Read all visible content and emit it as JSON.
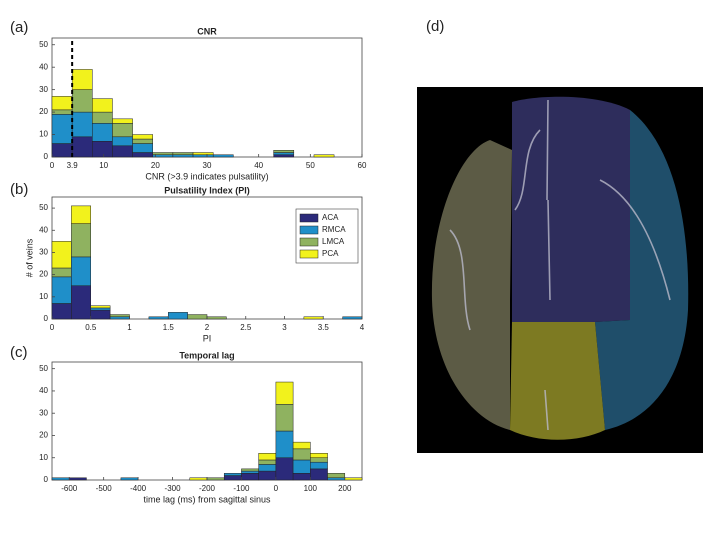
{
  "chart_data": [
    {
      "type": "histogram",
      "panel": "(a)",
      "title": "CNR",
      "xlabel": "CNR (>3.9 indicates pulsatility)",
      "bins": [
        0,
        3.9,
        7.8,
        11.7,
        15.6,
        19.5,
        23.4,
        27.3,
        31.2,
        35.1,
        39,
        42.9,
        46.8,
        50.7,
        54.6,
        58.5
      ],
      "series": [
        {
          "name": "ACA",
          "color": "#2b2a7a",
          "values": [
            6,
            9,
            7,
            5,
            2,
            0,
            0,
            0,
            0,
            0,
            0,
            1,
            0,
            0,
            0
          ]
        },
        {
          "name": "RMCA",
          "color": "#1f8fc9",
          "values": [
            13,
            11,
            8,
            4,
            4,
            1,
            1,
            1,
            1,
            0,
            0,
            1,
            0,
            0,
            0
          ]
        },
        {
          "name": "LMCA",
          "color": "#8fb260",
          "values": [
            2,
            10,
            5,
            6,
            2,
            1,
            1,
            0,
            0,
            0,
            0,
            1,
            0,
            0,
            0
          ]
        },
        {
          "name": "PCA",
          "color": "#f2f21c",
          "values": [
            6,
            9,
            6,
            2,
            2,
            0,
            0,
            1,
            0,
            0,
            0,
            0,
            0,
            1,
            0
          ]
        }
      ],
      "threshold": 3.9,
      "xlim": [
        0,
        60
      ],
      "xticks": [
        0,
        3.9,
        10,
        20,
        30,
        40,
        50,
        60
      ],
      "ylim": [
        0,
        53
      ],
      "yticks": [
        0,
        10,
        20,
        30,
        40,
        50
      ]
    },
    {
      "type": "histogram",
      "panel": "(b)",
      "title": "Pulsatility Index (PI)",
      "xlabel": "PI",
      "ylabel": "# of veins",
      "bins": [
        0,
        0.25,
        0.5,
        0.75,
        1,
        1.25,
        1.5,
        1.75,
        2,
        2.25,
        2.5,
        2.75,
        3,
        3.25,
        3.5,
        3.75,
        4
      ],
      "series": [
        {
          "name": "ACA",
          "color": "#2b2a7a",
          "values": [
            7,
            15,
            4,
            0,
            0,
            0,
            0,
            0,
            0,
            0,
            0,
            0,
            0,
            0,
            0,
            0
          ]
        },
        {
          "name": "RMCA",
          "color": "#1f8fc9",
          "values": [
            12,
            13,
            1,
            1,
            0,
            1,
            3,
            0,
            0,
            0,
            0,
            0,
            0,
            0,
            0,
            1
          ]
        },
        {
          "name": "LMCA",
          "color": "#8fb260",
          "values": [
            4,
            15,
            0,
            1,
            0,
            0,
            0,
            2,
            1,
            0,
            0,
            0,
            0,
            0,
            0,
            0
          ]
        },
        {
          "name": "PCA",
          "color": "#f2f21c",
          "values": [
            12,
            8,
            1,
            0,
            0,
            0,
            0,
            0,
            0,
            0,
            0,
            0,
            0,
            1,
            0,
            0
          ]
        }
      ],
      "legend": "upper right",
      "xlim": [
        0,
        4
      ],
      "xticks": [
        0,
        0.5,
        1,
        1.5,
        2,
        2.5,
        3,
        3.5,
        4
      ],
      "ylim": [
        0,
        55
      ],
      "yticks": [
        0,
        10,
        20,
        30,
        40,
        50
      ]
    },
    {
      "type": "histogram",
      "panel": "(c)",
      "title": "Temporal lag",
      "xlabel": "time lag (ms) from sagittal sinus",
      "bins": [
        -650,
        -600,
        -550,
        -500,
        -450,
        -400,
        -350,
        -300,
        -250,
        -200,
        -150,
        -100,
        -50,
        0,
        50,
        100,
        150,
        200,
        250
      ],
      "series": [
        {
          "name": "ACA",
          "color": "#2b2a7a",
          "values": [
            0,
            1,
            0,
            0,
            0,
            0,
            0,
            0,
            0,
            0,
            2,
            3,
            4,
            10,
            3,
            5,
            0,
            0
          ]
        },
        {
          "name": "RMCA",
          "color": "#1f8fc9",
          "values": [
            1,
            0,
            0,
            0,
            1,
            0,
            0,
            0,
            0,
            0,
            1,
            1,
            3,
            12,
            6,
            3,
            1,
            0
          ]
        },
        {
          "name": "LMCA",
          "color": "#8fb260",
          "values": [
            0,
            0,
            0,
            0,
            0,
            0,
            0,
            0,
            0,
            1,
            0,
            1,
            2,
            12,
            5,
            2,
            2,
            0
          ]
        },
        {
          "name": "PCA",
          "color": "#f2f21c",
          "values": [
            0,
            0,
            0,
            0,
            0,
            0,
            0,
            0,
            1,
            0,
            0,
            0,
            3,
            10,
            3,
            2,
            0,
            1
          ]
        }
      ],
      "xlim": [
        -650,
        250
      ],
      "xticks": [
        -600,
        -500,
        -400,
        -300,
        -200,
        -100,
        0,
        100,
        200
      ],
      "ylim": [
        0,
        53
      ],
      "yticks": [
        0,
        10,
        20,
        30,
        40,
        50
      ]
    }
  ],
  "image_panel": {
    "label": "(d)"
  }
}
